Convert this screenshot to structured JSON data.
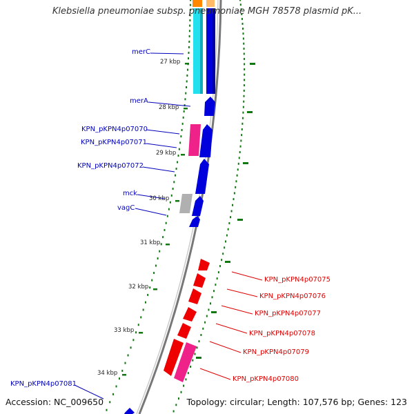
{
  "title": "Klebsiella pneumoniae subsp. pneumoniae MGH 78578 plasmid pK...",
  "accession_text": "Accession: NC_009650",
  "summary_text": "Topology: circular; Length: 107,576 bp; Genes: 123",
  "colors": {
    "label_blue": "#0000bb",
    "label_red": "#dd0000",
    "backbone": "#888888",
    "tick_green": "#117711",
    "cds_blue": "#0000dd",
    "cds_cyan": "#22e0ee",
    "cds_pink": "#ee2288",
    "cds_red": "#ee0000",
    "cds_gray": "#b0b0b0",
    "cds_orange": "#ff8800"
  },
  "kbp_ticks": [
    "27 kbp",
    "28 kbp",
    "29 kbp",
    "30 kbp",
    "31 kbp",
    "32 kbp",
    "33 kbp",
    "34 kbp"
  ],
  "gene_labels": [
    {
      "text": "merC",
      "color": "blue"
    },
    {
      "text": "merA",
      "color": "blue"
    },
    {
      "text": "KPN_pKPN4p07070",
      "color": "blue"
    },
    {
      "text": "KPN_pKPN4p07071",
      "color": "blue"
    },
    {
      "text": "KPN_pKPN4p07072",
      "color": "blue"
    },
    {
      "text": "mck",
      "color": "blue"
    },
    {
      "text": "vagC",
      "color": "blue"
    },
    {
      "text": "KPN_pKPN4p07075",
      "color": "red"
    },
    {
      "text": "KPN_pKPN4p07076",
      "color": "red"
    },
    {
      "text": "KPN_pKPN4p07077",
      "color": "red"
    },
    {
      "text": "KPN_pKPN4p07078",
      "color": "red"
    },
    {
      "text": "KPN_pKPN4p07079",
      "color": "red"
    },
    {
      "text": "KPN_pKPN4p07080",
      "color": "red"
    },
    {
      "text": "KPN_pKPN4p07081",
      "color": "blue"
    }
  ]
}
